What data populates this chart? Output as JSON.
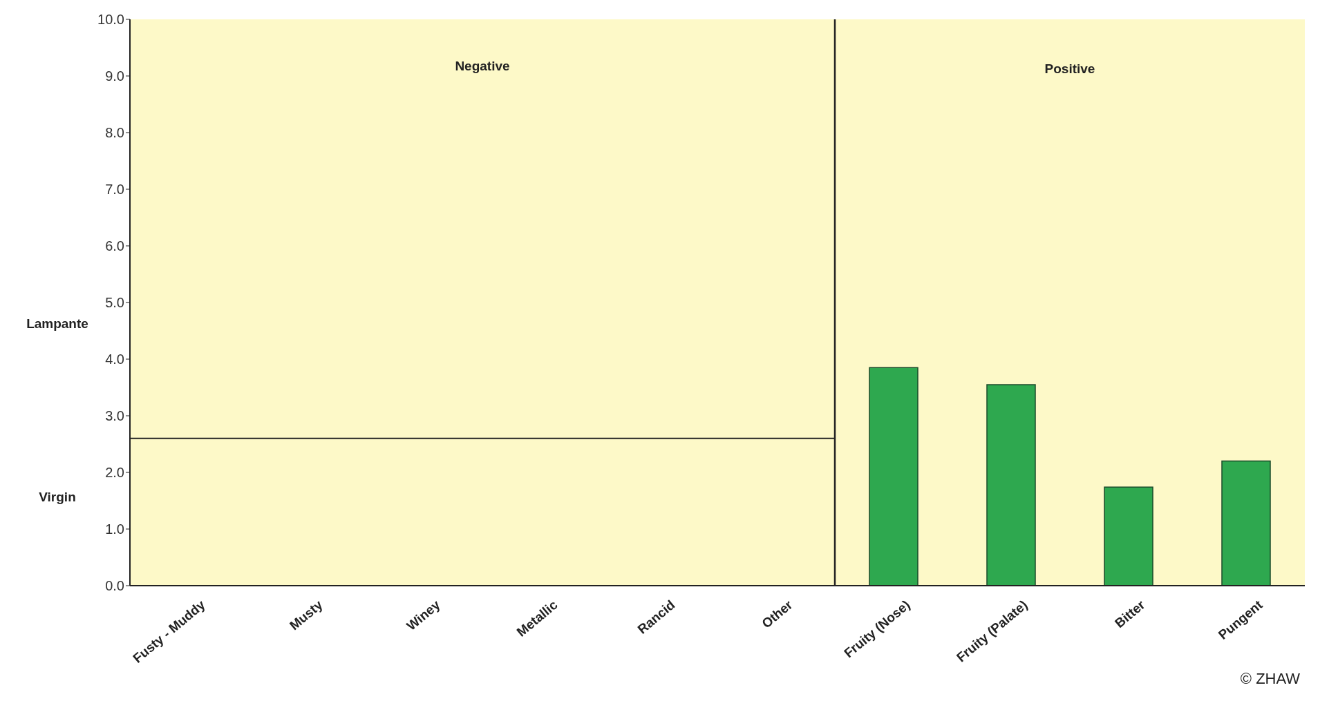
{
  "chart_data": {
    "type": "bar",
    "categories": [
      "Fusty - Muddy",
      "Musty",
      "Winey",
      "Metallic",
      "Rancid",
      "Other",
      "Fruity (Nose)",
      "Fruity (Palate)",
      "Bitter",
      "Pungent"
    ],
    "values": [
      null,
      null,
      null,
      null,
      null,
      null,
      3.85,
      3.55,
      1.74,
      2.2
    ],
    "color": "#2ea84f",
    "ylim": [
      0,
      10
    ],
    "yticks": [
      {
        "value": 0,
        "label": "0.0"
      },
      {
        "value": 1,
        "label": "1.0"
      },
      {
        "value": 2,
        "label": "2.0"
      },
      {
        "value": 3,
        "label": "3.0"
      },
      {
        "value": 4,
        "label": "4.0"
      },
      {
        "value": 5,
        "label": "5.0"
      },
      {
        "value": 6,
        "label": "6.0"
      },
      {
        "value": 7,
        "label": "7.0"
      },
      {
        "value": 8,
        "label": "8.0"
      },
      {
        "value": 9,
        "label": "9.0"
      },
      {
        "value": 10,
        "label": "10.0"
      }
    ],
    "ref_lines": [
      {
        "axis": "y",
        "value": 2.6,
        "color": "#222222"
      }
    ],
    "annotations": [
      "Negative",
      "Positive",
      "Lampante",
      "Virgin",
      "© ZHAW"
    ]
  }
}
